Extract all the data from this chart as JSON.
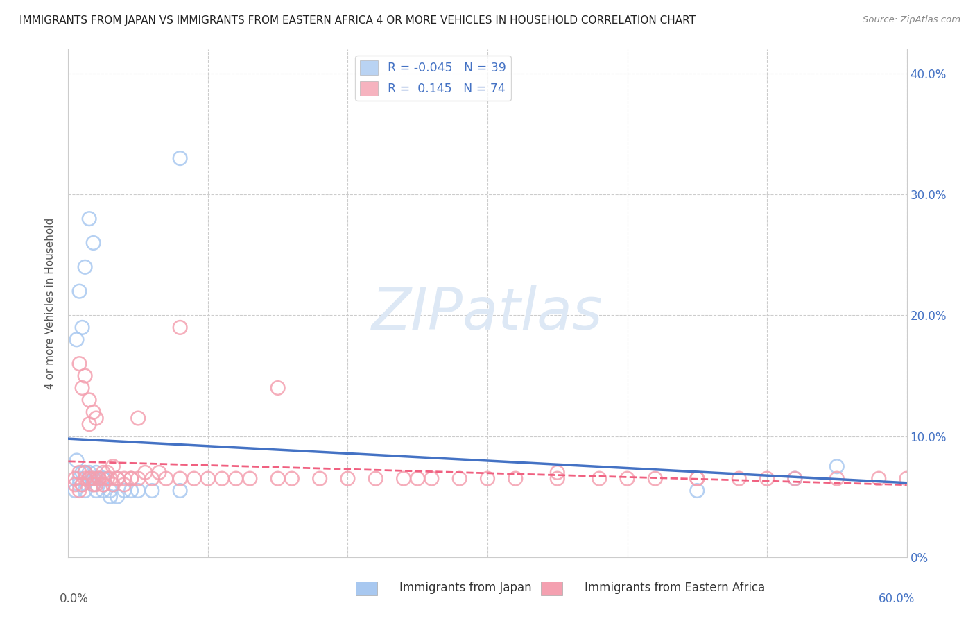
{
  "title": "IMMIGRANTS FROM JAPAN VS IMMIGRANTS FROM EASTERN AFRICA 4 OR MORE VEHICLES IN HOUSEHOLD CORRELATION CHART",
  "source": "Source: ZipAtlas.com",
  "ylabel": "4 or more Vehicles in Household",
  "legend_japan": "Immigrants from Japan",
  "legend_africa": "Immigrants from Eastern Africa",
  "R_japan": -0.045,
  "N_japan": 39,
  "R_africa": 0.145,
  "N_africa": 74,
  "japan_color": "#a8c8f0",
  "africa_color": "#f4a0b0",
  "japan_line_color": "#4472c4",
  "africa_line_color": "#f06080",
  "watermark_color": "#dde8f5",
  "xlim": [
    0.0,
    0.6
  ],
  "ylim": [
    0.0,
    0.42
  ],
  "yticks": [
    0.0,
    0.1,
    0.2,
    0.3,
    0.4
  ],
  "ytick_labels_right": [
    "0%",
    "10.0%",
    "20.0%",
    "30.0%",
    "40.0%"
  ],
  "xtick_labels_bottom_left": "0.0%",
  "xtick_labels_bottom_right": "60.0%",
  "japan_x": [
    0.008,
    0.01,
    0.005,
    0.015,
    0.006,
    0.012,
    0.008,
    0.018,
    0.006,
    0.01,
    0.008,
    0.012,
    0.018,
    0.015,
    0.02,
    0.012,
    0.015,
    0.018,
    0.022,
    0.025,
    0.015,
    0.02,
    0.025,
    0.02,
    0.025,
    0.03,
    0.035,
    0.025,
    0.03,
    0.035,
    0.04,
    0.045,
    0.05,
    0.06,
    0.08,
    0.08,
    0.45,
    0.52,
    0.55
  ],
  "japan_y": [
    0.065,
    0.07,
    0.055,
    0.07,
    0.08,
    0.055,
    0.06,
    0.06,
    0.18,
    0.19,
    0.22,
    0.24,
    0.26,
    0.28,
    0.07,
    0.07,
    0.065,
    0.065,
    0.065,
    0.065,
    0.065,
    0.065,
    0.065,
    0.055,
    0.055,
    0.055,
    0.065,
    0.065,
    0.05,
    0.05,
    0.055,
    0.055,
    0.055,
    0.055,
    0.055,
    0.33,
    0.055,
    0.065,
    0.075
  ],
  "africa_x": [
    0.005,
    0.008,
    0.005,
    0.01,
    0.008,
    0.012,
    0.01,
    0.015,
    0.012,
    0.015,
    0.018,
    0.008,
    0.01,
    0.012,
    0.015,
    0.018,
    0.02,
    0.015,
    0.018,
    0.02,
    0.022,
    0.025,
    0.022,
    0.025,
    0.028,
    0.025,
    0.028,
    0.03,
    0.032,
    0.035,
    0.032,
    0.035,
    0.04,
    0.045,
    0.04,
    0.045,
    0.05,
    0.055,
    0.06,
    0.065,
    0.07,
    0.08,
    0.09,
    0.1,
    0.11,
    0.12,
    0.13,
    0.15,
    0.16,
    0.18,
    0.2,
    0.22,
    0.24,
    0.26,
    0.28,
    0.3,
    0.32,
    0.35,
    0.38,
    0.4,
    0.42,
    0.45,
    0.48,
    0.5,
    0.52,
    0.55,
    0.58,
    0.6,
    0.35,
    0.25,
    0.15,
    0.45,
    0.05,
    0.08
  ],
  "africa_y": [
    0.06,
    0.055,
    0.065,
    0.06,
    0.07,
    0.065,
    0.06,
    0.065,
    0.07,
    0.065,
    0.06,
    0.16,
    0.14,
    0.15,
    0.13,
    0.12,
    0.115,
    0.11,
    0.065,
    0.06,
    0.065,
    0.06,
    0.065,
    0.07,
    0.065,
    0.06,
    0.07,
    0.065,
    0.075,
    0.065,
    0.06,
    0.065,
    0.065,
    0.065,
    0.06,
    0.065,
    0.065,
    0.07,
    0.065,
    0.07,
    0.065,
    0.065,
    0.065,
    0.065,
    0.065,
    0.065,
    0.065,
    0.065,
    0.065,
    0.065,
    0.065,
    0.065,
    0.065,
    0.065,
    0.065,
    0.065,
    0.065,
    0.065,
    0.065,
    0.065,
    0.065,
    0.065,
    0.065,
    0.065,
    0.065,
    0.065,
    0.065,
    0.065,
    0.07,
    0.065,
    0.14,
    0.065,
    0.115,
    0.19
  ]
}
